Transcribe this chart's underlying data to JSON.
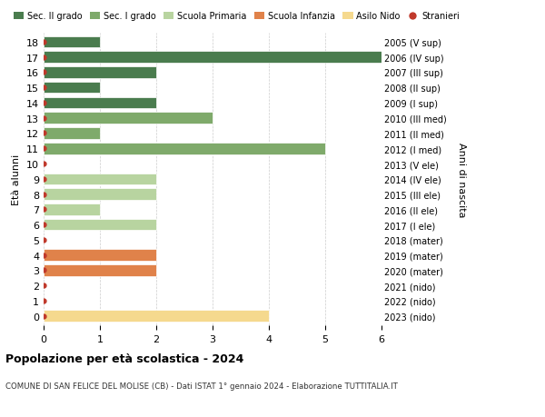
{
  "ages": [
    18,
    17,
    16,
    15,
    14,
    13,
    12,
    11,
    10,
    9,
    8,
    7,
    6,
    5,
    4,
    3,
    2,
    1,
    0
  ],
  "right_labels": [
    "2005 (V sup)",
    "2006 (IV sup)",
    "2007 (III sup)",
    "2008 (II sup)",
    "2009 (I sup)",
    "2010 (III med)",
    "2011 (II med)",
    "2012 (I med)",
    "2013 (V ele)",
    "2014 (IV ele)",
    "2015 (III ele)",
    "2016 (II ele)",
    "2017 (I ele)",
    "2018 (mater)",
    "2019 (mater)",
    "2020 (mater)",
    "2021 (nido)",
    "2022 (nido)",
    "2023 (nido)"
  ],
  "values": [
    1,
    6,
    2,
    1,
    2,
    3,
    1,
    5,
    0,
    2,
    2,
    1,
    2,
    0,
    2,
    2,
    0,
    0,
    4
  ],
  "colors": [
    "#4a7c4e",
    "#4a7c4e",
    "#4a7c4e",
    "#4a7c4e",
    "#4a7c4e",
    "#7faa6b",
    "#7faa6b",
    "#7faa6b",
    "#b8d4a0",
    "#b8d4a0",
    "#b8d4a0",
    "#b8d4a0",
    "#b8d4a0",
    "#e0824a",
    "#e0824a",
    "#e0824a",
    "#f5d98e",
    "#f5d98e",
    "#f5d98e"
  ],
  "dot_color": "#c0392b",
  "xlim": [
    0,
    6
  ],
  "xticks": [
    0,
    1,
    2,
    3,
    4,
    5,
    6
  ],
  "title_bold": "Popolazione per età scolastica - 2024",
  "subtitle": "COMUNE DI SAN FELICE DEL MOLISE (CB) - Dati ISTAT 1° gennaio 2024 - Elaborazione TUTTITALIA.IT",
  "ylabel_left": "Età alunni",
  "ylabel_right": "Anni di nascita",
  "legend_labels": [
    "Sec. II grado",
    "Sec. I grado",
    "Scuola Primaria",
    "Scuola Infanzia",
    "Asilo Nido",
    "Stranieri"
  ],
  "legend_colors": [
    "#4a7c4e",
    "#7faa6b",
    "#b8d4a0",
    "#e0824a",
    "#f5d98e",
    "#c0392b"
  ],
  "bg_color": "#ffffff",
  "grid_color": "#cccccc"
}
